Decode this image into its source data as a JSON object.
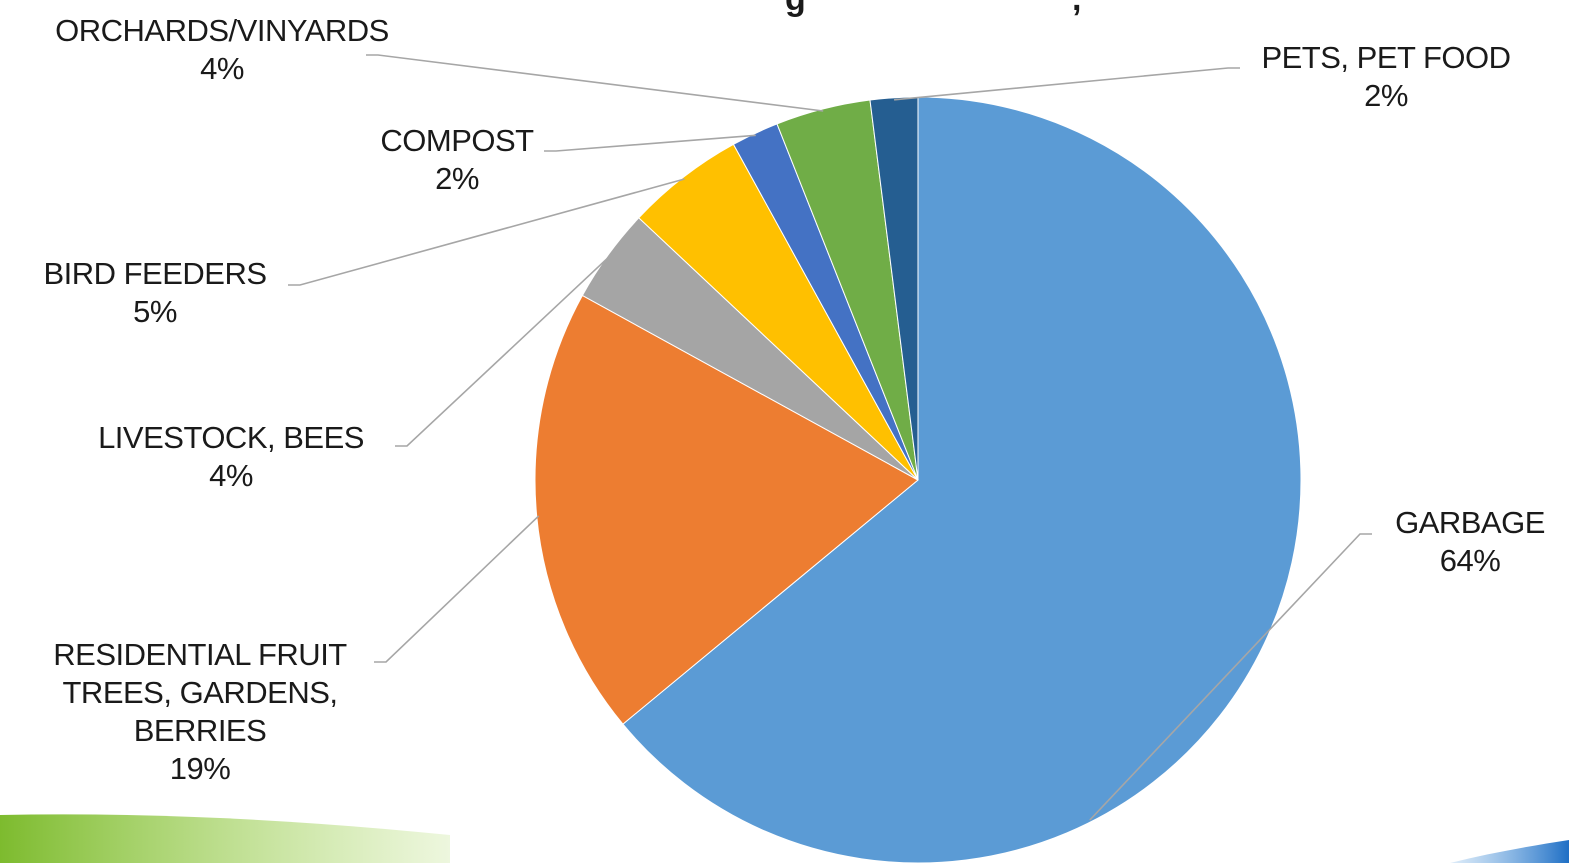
{
  "title_fragment": "g",
  "title_fragment_2": ",",
  "chart_data": {
    "type": "pie",
    "start_angle_deg": 0,
    "direction": "clockwise",
    "slices": [
      {
        "name": "GARBAGE",
        "lines": [
          "GARBAGE"
        ],
        "value": 64,
        "pct_label": "64%",
        "color": "#5B9BD5"
      },
      {
        "name": "RESIDENTIAL FRUIT TREES, GARDENS, BERRIES",
        "lines": [
          "RESIDENTIAL FRUIT",
          "TREES, GARDENS,",
          "BERRIES"
        ],
        "value": 19,
        "pct_label": "19%",
        "color": "#ED7D31"
      },
      {
        "name": "LIVESTOCK, BEES",
        "lines": [
          "LIVESTOCK, BEES"
        ],
        "value": 4,
        "pct_label": "4%",
        "color": "#A5A5A5"
      },
      {
        "name": "BIRD FEEDERS",
        "lines": [
          "BIRD FEEDERS"
        ],
        "value": 5,
        "pct_label": "5%",
        "color": "#FFC000"
      },
      {
        "name": "COMPOST",
        "lines": [
          "COMPOST"
        ],
        "value": 2,
        "pct_label": "2%",
        "color": "#4472C4"
      },
      {
        "name": "ORCHARDS/VINYARDS",
        "lines": [
          "ORCHARDS/VINYARDS"
        ],
        "value": 4,
        "pct_label": "4%",
        "color": "#70AD47"
      },
      {
        "name": "PETS, PET FOOD",
        "lines": [
          "PETS, PET FOOD"
        ],
        "value": 2,
        "pct_label": "2%",
        "color": "#255E91"
      }
    ]
  },
  "decor": {
    "left_swoosh_color": "#8DC63F",
    "right_swoosh_color": "#1F6FC5"
  }
}
